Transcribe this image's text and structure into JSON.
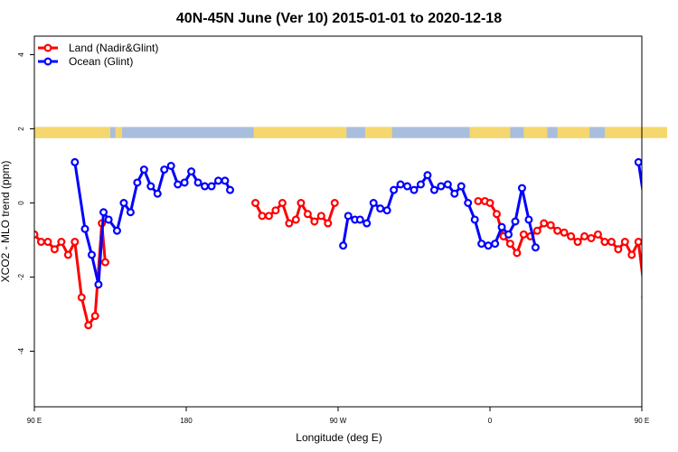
{
  "chart_data": {
    "type": "line",
    "title": "40N-45N June (Ver 10)   2015-01-01 to 2020-12-18",
    "xlabel": "Longitude (deg E)",
    "ylabel": "XCO2 - MLO trend (ppm)",
    "xlim": [
      90,
      450
    ],
    "ylim": [
      -5.5,
      4.5
    ],
    "x_ticks": [
      {
        "value": 90,
        "label": "90 E"
      },
      {
        "value": 180,
        "label": "180"
      },
      {
        "value": 270,
        "label": "90 W"
      },
      {
        "value": 360,
        "label": "0"
      },
      {
        "value": 450,
        "label": "90 E"
      },
      {
        "value": 540,
        "label": "180"
      }
    ],
    "y_ticks": [
      {
        "value": -4,
        "label": "-4"
      },
      {
        "value": -2,
        "label": "-2"
      },
      {
        "value": 0,
        "label": "0"
      },
      {
        "value": 2,
        "label": "2"
      },
      {
        "value": 4,
        "label": "4"
      }
    ],
    "grid": false,
    "legend_position": "top-left",
    "land_ocean_bar": {
      "y_range": [
        1.75,
        2.05
      ],
      "land_color": "#F5D76E",
      "ocean_color": "#A9BEDD",
      "land_segments": [
        [
          90,
          135
        ],
        [
          138,
          142
        ],
        [
          220,
          275
        ],
        [
          286,
          302
        ],
        [
          348,
          372
        ],
        [
          380,
          394
        ],
        [
          400,
          419
        ],
        [
          428,
          465
        ]
      ]
    },
    "series": [
      {
        "name": "Land (Nadir&Glint)",
        "color": "#ff0000",
        "segments": [
          [
            [
              90,
              -0.85
            ],
            [
              94,
              -1.05
            ],
            [
              98,
              -1.05
            ],
            [
              102,
              -1.25
            ],
            [
              106,
              -1.05
            ],
            [
              110,
              -1.4
            ],
            [
              114,
              -1.05
            ],
            [
              118,
              -2.55
            ],
            [
              122,
              -3.3
            ],
            [
              126,
              -3.05
            ],
            [
              130,
              -0.55
            ],
            [
              132,
              -1.6
            ]
          ],
          [
            [
              221,
              0.0
            ],
            [
              225,
              -0.35
            ],
            [
              229,
              -0.35
            ],
            [
              233,
              -0.2
            ],
            [
              237,
              0.0
            ],
            [
              241,
              -0.55
            ],
            [
              245,
              -0.45
            ],
            [
              248,
              0.0
            ],
            [
              252,
              -0.3
            ],
            [
              256,
              -0.5
            ],
            [
              260,
              -0.35
            ],
            [
              264,
              -0.55
            ],
            [
              268,
              0.0
            ]
          ],
          [
            [
              353,
              0.05
            ],
            [
              357,
              0.05
            ],
            [
              360,
              0.0
            ],
            [
              364,
              -0.3
            ],
            [
              368,
              -0.9
            ],
            [
              372,
              -1.1
            ],
            [
              376,
              -1.35
            ],
            [
              380,
              -0.85
            ],
            [
              384,
              -0.9
            ],
            [
              388,
              -0.75
            ],
            [
              392,
              -0.55
            ],
            [
              396,
              -0.6
            ],
            [
              400,
              -0.75
            ],
            [
              404,
              -0.8
            ],
            [
              408,
              -0.9
            ],
            [
              412,
              -1.05
            ],
            [
              416,
              -0.9
            ],
            [
              420,
              -0.95
            ],
            [
              424,
              -0.85
            ],
            [
              428,
              -1.05
            ],
            [
              432,
              -1.05
            ],
            [
              436,
              -1.25
            ],
            [
              440,
              -1.05
            ],
            [
              444,
              -1.4
            ],
            [
              448,
              -1.05
            ],
            [
              452,
              -2.55
            ],
            [
              456,
              -3.3
            ],
            [
              460,
              -3.05
            ],
            [
              464,
              -0.55
            ],
            [
              466,
              -1.6
            ]
          ]
        ]
      },
      {
        "name": "Ocean (Glint)",
        "color": "#0000ff",
        "segments": [
          [
            [
              114,
              1.1
            ],
            [
              120,
              -0.7
            ],
            [
              124,
              -1.4
            ],
            [
              128,
              -2.2
            ],
            [
              131,
              -0.25
            ],
            [
              134,
              -0.45
            ],
            [
              139,
              -0.75
            ],
            [
              143,
              0.0
            ],
            [
              147,
              -0.25
            ],
            [
              151,
              0.55
            ],
            [
              155,
              0.9
            ],
            [
              159,
              0.45
            ],
            [
              163,
              0.25
            ],
            [
              167,
              0.9
            ],
            [
              171,
              1.0
            ],
            [
              175,
              0.5
            ],
            [
              179,
              0.55
            ],
            [
              183,
              0.85
            ],
            [
              187,
              0.55
            ],
            [
              191,
              0.45
            ],
            [
              195,
              0.45
            ],
            [
              199,
              0.6
            ],
            [
              203,
              0.6
            ],
            [
              206,
              0.35
            ]
          ],
          [
            [
              273,
              -1.15
            ],
            [
              276,
              -0.35
            ],
            [
              280,
              -0.45
            ],
            [
              283,
              -0.45
            ],
            [
              287,
              -0.55
            ],
            [
              291,
              0.0
            ],
            [
              295,
              -0.15
            ],
            [
              299,
              -0.2
            ],
            [
              303,
              0.35
            ],
            [
              307,
              0.5
            ],
            [
              311,
              0.45
            ],
            [
              315,
              0.35
            ],
            [
              319,
              0.5
            ],
            [
              323,
              0.75
            ],
            [
              327,
              0.35
            ],
            [
              331,
              0.45
            ],
            [
              335,
              0.5
            ],
            [
              339,
              0.25
            ],
            [
              343,
              0.45
            ],
            [
              347,
              0.0
            ],
            [
              351,
              -0.45
            ],
            [
              355,
              -1.1
            ],
            [
              359,
              -1.15
            ],
            [
              363,
              -1.1
            ],
            [
              367,
              -0.65
            ],
            [
              371,
              -0.85
            ],
            [
              375,
              -0.5
            ],
            [
              379,
              0.4
            ],
            [
              383,
              -0.45
            ],
            [
              387,
              -1.2
            ]
          ],
          [
            [
              448,
              1.1
            ],
            [
              454,
              -0.7
            ],
            [
              458,
              -1.4
            ],
            [
              462,
              -2.2
            ],
            [
              465,
              -0.25
            ],
            [
              468,
              -0.45
            ],
            [
              473,
              -0.75
            ],
            [
              477,
              0.0
            ],
            [
              481,
              -0.25
            ],
            [
              485,
              0.55
            ],
            [
              489,
              0.9
            ],
            [
              493,
              0.45
            ]
          ]
        ]
      }
    ]
  }
}
